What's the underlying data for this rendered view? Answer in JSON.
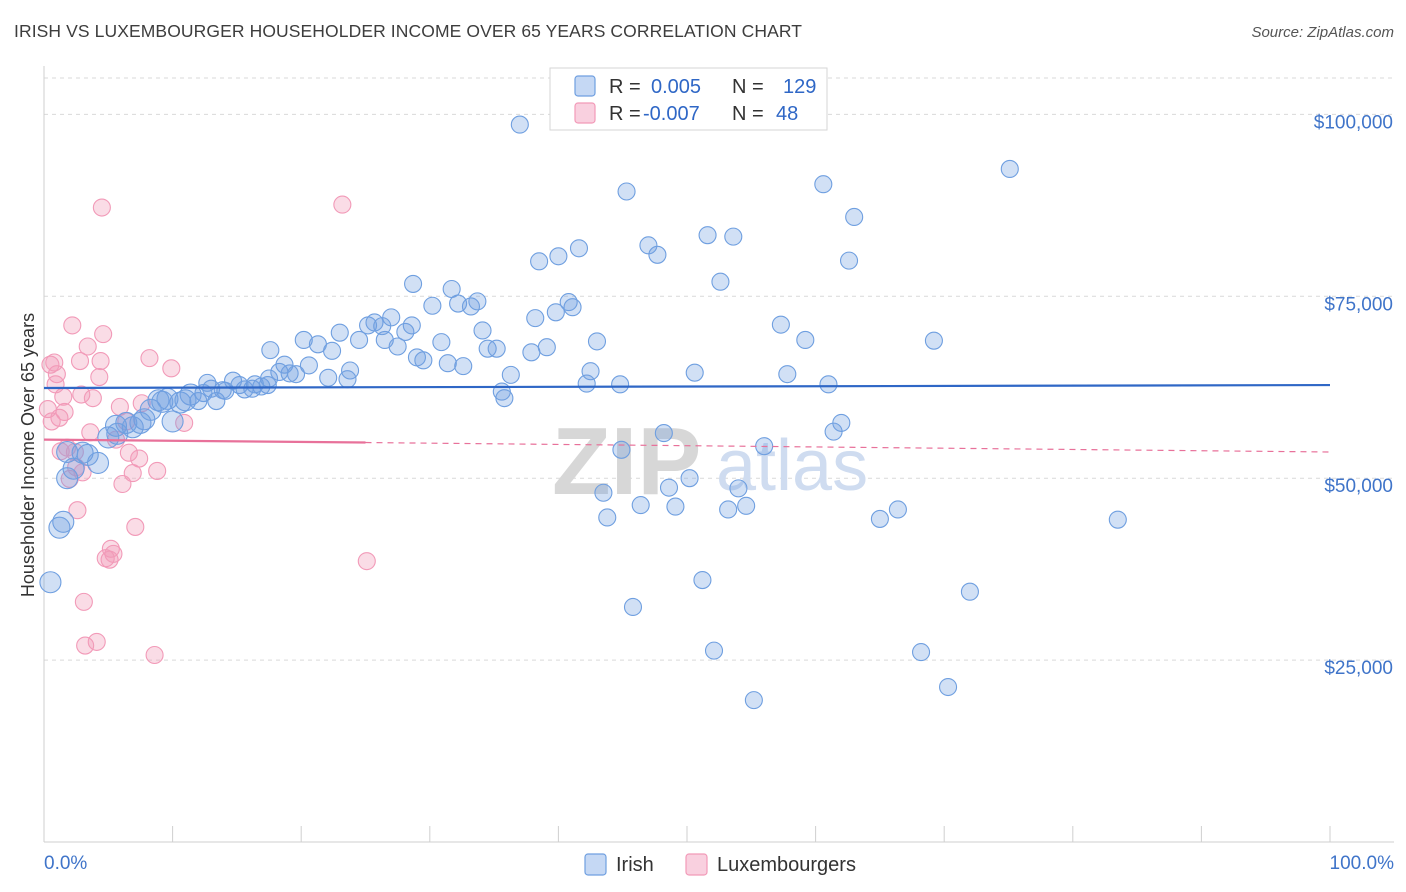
{
  "title": "IRISH VS LUXEMBOURGER HOUSEHOLDER INCOME OVER 65 YEARS CORRELATION CHART",
  "source": "Source: ZipAtlas.com",
  "watermark": {
    "zip": "ZIP",
    "atlas": "atlas"
  },
  "stats_legend": [
    {
      "r_label": "R =",
      "r_value": "0.005",
      "n_label": "N =",
      "n_value": "129"
    },
    {
      "r_label": "R =",
      "r_value": "-0.007",
      "n_label": "N =",
      "n_value": "48"
    }
  ],
  "colors": {
    "irish": "#6f9fe0",
    "irish_line": "#2f67c6",
    "lux": "#f29ab8",
    "lux_line": "#e8719a",
    "tick": "#3f74c9"
  },
  "chart_data": {
    "type": "scatter",
    "xlabel": "",
    "ylabel": "Householder Income Over 65 years",
    "xlim": [
      0,
      100
    ],
    "ylim": [
      0,
      105000
    ],
    "x_tick_labels": [
      "0.0%",
      "100.0%"
    ],
    "y_ticks": [
      25000,
      50000,
      75000,
      100000
    ],
    "y_tick_labels": [
      "$25,000",
      "$50,000",
      "$75,000",
      "$100,000"
    ],
    "grid": true,
    "legend": "bottom-center",
    "series": [
      {
        "name": "Irish",
        "trend": {
          "y_at_0": 62400,
          "y_at_100": 62800
        },
        "points": [
          [
            0.5,
            35700
          ],
          [
            1.2,
            43200
          ],
          [
            1.5,
            44000
          ],
          [
            1.8,
            53600
          ],
          [
            1.8,
            50000
          ],
          [
            2.3,
            51300
          ],
          [
            3.0,
            53500
          ],
          [
            3.4,
            53200
          ],
          [
            4.2,
            52100
          ],
          [
            5.0,
            55600
          ],
          [
            5.6,
            57200
          ],
          [
            5.7,
            56100
          ],
          [
            6.4,
            57600
          ],
          [
            6.9,
            57000
          ],
          [
            7.5,
            57600
          ],
          [
            7.8,
            58100
          ],
          [
            8.3,
            59400
          ],
          [
            8.9,
            60700
          ],
          [
            9.2,
            60500
          ],
          [
            9.6,
            60900
          ],
          [
            10.0,
            57800
          ],
          [
            10.6,
            60400
          ],
          [
            11.0,
            60700
          ],
          [
            11.4,
            61500
          ],
          [
            12.0,
            60600
          ],
          [
            12.4,
            61700
          ],
          [
            12.7,
            63100
          ],
          [
            13.0,
            62300
          ],
          [
            13.4,
            60600
          ],
          [
            13.9,
            62100
          ],
          [
            14.1,
            62000
          ],
          [
            14.7,
            63400
          ],
          [
            15.2,
            62800
          ],
          [
            15.6,
            62200
          ],
          [
            16.2,
            62300
          ],
          [
            16.4,
            62900
          ],
          [
            16.9,
            62600
          ],
          [
            17.4,
            62800
          ],
          [
            17.5,
            63700
          ],
          [
            17.6,
            67600
          ],
          [
            18.3,
            64600
          ],
          [
            18.7,
            65600
          ],
          [
            19.1,
            64400
          ],
          [
            19.6,
            64300
          ],
          [
            20.2,
            69000
          ],
          [
            20.6,
            65500
          ],
          [
            21.3,
            68400
          ],
          [
            22.1,
            63800
          ],
          [
            22.4,
            67500
          ],
          [
            23.0,
            70000
          ],
          [
            23.6,
            63600
          ],
          [
            23.8,
            64800
          ],
          [
            24.5,
            69000
          ],
          [
            25.2,
            71000
          ],
          [
            25.7,
            71400
          ],
          [
            26.3,
            70900
          ],
          [
            26.5,
            69000
          ],
          [
            27.0,
            72100
          ],
          [
            27.5,
            68100
          ],
          [
            28.1,
            70100
          ],
          [
            28.6,
            71000
          ],
          [
            29.0,
            66600
          ],
          [
            28.7,
            76700
          ],
          [
            29.5,
            66200
          ],
          [
            30.2,
            73700
          ],
          [
            30.9,
            68700
          ],
          [
            31.4,
            65800
          ],
          [
            31.7,
            76000
          ],
          [
            32.2,
            74000
          ],
          [
            32.6,
            65400
          ],
          [
            33.2,
            73600
          ],
          [
            33.7,
            74300
          ],
          [
            34.1,
            70300
          ],
          [
            34.5,
            67800
          ],
          [
            35.2,
            67800
          ],
          [
            35.6,
            61900
          ],
          [
            35.8,
            61000
          ],
          [
            36.3,
            64200
          ],
          [
            37.0,
            98600
          ],
          [
            37.9,
            67300
          ],
          [
            38.2,
            72000
          ],
          [
            38.5,
            79800
          ],
          [
            39.1,
            68000
          ],
          [
            39.8,
            72800
          ],
          [
            40.0,
            80500
          ],
          [
            40.8,
            74200
          ],
          [
            41.1,
            73500
          ],
          [
            41.6,
            81600
          ],
          [
            42.2,
            63000
          ],
          [
            42.5,
            64700
          ],
          [
            43.0,
            68800
          ],
          [
            43.5,
            48000
          ],
          [
            43.8,
            44600
          ],
          [
            44.8,
            62900
          ],
          [
            44.9,
            53900
          ],
          [
            45.3,
            89400
          ],
          [
            45.8,
            32300
          ],
          [
            46.4,
            46300
          ],
          [
            47.0,
            82000
          ],
          [
            47.7,
            80700
          ],
          [
            48.2,
            56200
          ],
          [
            48.6,
            48700
          ],
          [
            49.1,
            46100
          ],
          [
            50.2,
            50000
          ],
          [
            50.6,
            64500
          ],
          [
            51.2,
            36000
          ],
          [
            51.6,
            83400
          ],
          [
            52.1,
            26300
          ],
          [
            52.6,
            77000
          ],
          [
            53.2,
            45700
          ],
          [
            53.6,
            83200
          ],
          [
            54.0,
            48600
          ],
          [
            54.6,
            46200
          ],
          [
            55.2,
            19500
          ],
          [
            56.0,
            54400
          ],
          [
            57.3,
            71100
          ],
          [
            57.8,
            64300
          ],
          [
            59.2,
            69000
          ],
          [
            60.6,
            90400
          ],
          [
            61.0,
            62900
          ],
          [
            61.4,
            56400
          ],
          [
            62.0,
            57600
          ],
          [
            62.6,
            79900
          ],
          [
            63.0,
            85900
          ],
          [
            65.0,
            44400
          ],
          [
            66.4,
            45700
          ],
          [
            68.2,
            26100
          ],
          [
            69.2,
            68900
          ],
          [
            70.3,
            21300
          ],
          [
            72.0,
            34400
          ],
          [
            75.1,
            92500
          ],
          [
            83.5,
            44300
          ]
        ]
      },
      {
        "name": "Luxembourgers",
        "trend": {
          "y_at_0": 55300,
          "y_at_25": 54900,
          "y_at_100": 53600,
          "solid_until": 25
        },
        "points": [
          [
            0.3,
            59500
          ],
          [
            0.5,
            65600
          ],
          [
            0.6,
            57800
          ],
          [
            0.8,
            65900
          ],
          [
            0.9,
            62900
          ],
          [
            1.0,
            64300
          ],
          [
            1.2,
            58300
          ],
          [
            1.3,
            53700
          ],
          [
            1.5,
            61200
          ],
          [
            1.6,
            59100
          ],
          [
            1.8,
            54200
          ],
          [
            2.0,
            49900
          ],
          [
            2.2,
            71000
          ],
          [
            2.4,
            53600
          ],
          [
            2.5,
            51500
          ],
          [
            2.6,
            45600
          ],
          [
            2.8,
            66100
          ],
          [
            2.9,
            61500
          ],
          [
            3.0,
            50800
          ],
          [
            3.1,
            33000
          ],
          [
            3.2,
            27000
          ],
          [
            3.4,
            68100
          ],
          [
            3.6,
            56300
          ],
          [
            3.8,
            61000
          ],
          [
            4.1,
            27500
          ],
          [
            4.3,
            63900
          ],
          [
            4.4,
            66100
          ],
          [
            4.5,
            87200
          ],
          [
            4.6,
            69800
          ],
          [
            4.8,
            39000
          ],
          [
            5.1,
            38800
          ],
          [
            5.2,
            40300
          ],
          [
            5.4,
            39600
          ],
          [
            5.6,
            55300
          ],
          [
            5.9,
            59800
          ],
          [
            6.1,
            49200
          ],
          [
            6.4,
            57800
          ],
          [
            6.6,
            53500
          ],
          [
            6.9,
            50700
          ],
          [
            7.1,
            43300
          ],
          [
            7.4,
            52700
          ],
          [
            7.6,
            60300
          ],
          [
            8.2,
            66500
          ],
          [
            8.6,
            25700
          ],
          [
            8.8,
            51000
          ],
          [
            9.9,
            65100
          ],
          [
            10.9,
            57600
          ],
          [
            23.2,
            87600
          ],
          [
            25.1,
            38600
          ]
        ]
      }
    ]
  }
}
